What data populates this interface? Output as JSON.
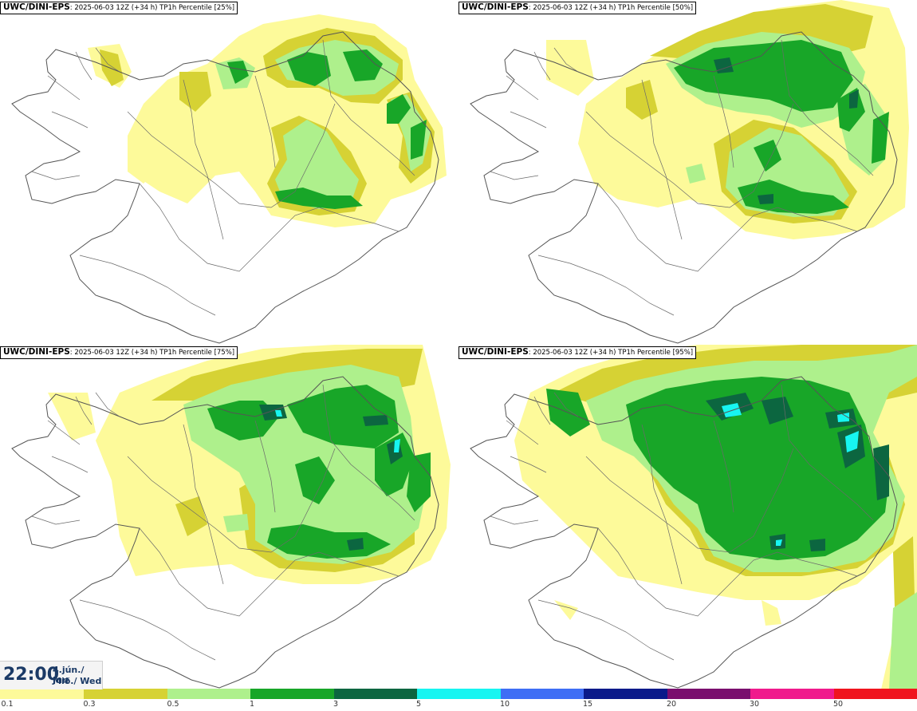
{
  "colors": {
    "c_01": "#fdfa9a",
    "c_03": "#d6d234",
    "c_05": "#aef08c",
    "c_1": "#18a628",
    "c_3": "#0c6640",
    "c_5": "#17f5f1",
    "coast": "#555555",
    "bg": "#ffffff"
  },
  "panels": [
    {
      "model": "UWC/DINI-EPS",
      "meta": ": 2025-06-03 12Z (+34 h) TP1h Percentile [25%]"
    },
    {
      "model": "UWC/DINI-EPS",
      "meta": ": 2025-06-03 12Z (+34 h) TP1h Percentile [50%]"
    },
    {
      "model": "UWC/DINI-EPS",
      "meta": ": 2025-06-03 12Z (+34 h) TP1h Percentile [75%]"
    },
    {
      "model": "UWC/DINI-EPS",
      "meta": ": 2025-06-03 12Z (+34 h) TP1h Percentile [95%]"
    }
  ],
  "valid_time": {
    "time": "22:00",
    "date_line1": "4.jún./ Jun",
    "date_line2": "Mið./ Wed"
  },
  "legend": {
    "labels": [
      "0.1",
      "0.3",
      "0.5",
      "1",
      "3",
      "5",
      "10",
      "15",
      "20",
      "30",
      "50"
    ],
    "colors": [
      "#fdfa9a",
      "#d6d234",
      "#aef08c",
      "#18a628",
      "#0c6640",
      "#17f5f1",
      "#3f6ef5",
      "#0a1a8a",
      "#7a0e6e",
      "#f01a8c",
      "#f0141e"
    ]
  }
}
